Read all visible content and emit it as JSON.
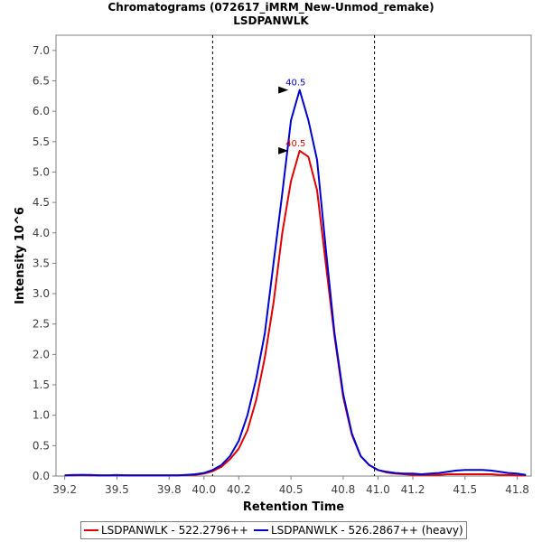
{
  "chart_data": {
    "type": "line",
    "title": "Chromatograms (072617_iMRM_New-Unmod_remake)",
    "subtitle": "LSDPANWLK",
    "xlabel": "Retention Time",
    "ylabel": "Intensity 10^6",
    "xlim": [
      39.15,
      41.88
    ],
    "ylim": [
      0,
      7.25
    ],
    "x_ticks": [
      39.2,
      39.5,
      39.8,
      40.0,
      40.2,
      40.5,
      40.8,
      41.0,
      41.2,
      41.5,
      41.8
    ],
    "x_tick_labels": [
      "39.2",
      "39.5",
      "39.8",
      "40.0",
      "40.2",
      "40.5",
      "40.8",
      "41.0",
      "41.2",
      "41.5",
      "41.8"
    ],
    "y_ticks": [
      0,
      0.5,
      1,
      1.5,
      2,
      2.5,
      3,
      3.5,
      4,
      4.5,
      5,
      5.5,
      6,
      6.5,
      7
    ],
    "y_tick_labels": [
      "0.0",
      "0.5",
      "1.0",
      "1.5",
      "2.0",
      "2.5",
      "3.0",
      "3.5",
      "4.0",
      "4.5",
      "5.0",
      "5.5",
      "6.0",
      "6.5",
      "7.0"
    ],
    "vlines": [
      40.05,
      40.98
    ],
    "series": [
      {
        "name": "LSDPANWLK - 522.2796++",
        "color": "#e00000",
        "peak_label": "40.5",
        "peak": [
          40.5,
          5.35
        ],
        "x": [
          39.2,
          39.25,
          39.3,
          39.35,
          39.4,
          39.45,
          39.5,
          39.55,
          39.6,
          39.65,
          39.7,
          39.75,
          39.8,
          39.85,
          39.9,
          39.95,
          40.0,
          40.05,
          40.1,
          40.15,
          40.2,
          40.25,
          40.3,
          40.35,
          40.4,
          40.45,
          40.5,
          40.55,
          40.6,
          40.65,
          40.7,
          40.75,
          40.8,
          40.85,
          40.9,
          40.95,
          41.0,
          41.05,
          41.1,
          41.15,
          41.2,
          41.25,
          41.3,
          41.35,
          41.4,
          41.45,
          41.5,
          41.55,
          41.6,
          41.65,
          41.7,
          41.75,
          41.8,
          41.85
        ],
        "y": [
          0.01,
          0.01,
          0.02,
          0.01,
          0.01,
          0.01,
          0.02,
          0.01,
          0.01,
          0.01,
          0.01,
          0.01,
          0.01,
          0.01,
          0.02,
          0.02,
          0.04,
          0.08,
          0.15,
          0.28,
          0.45,
          0.75,
          1.25,
          1.95,
          2.85,
          4.0,
          4.85,
          5.35,
          5.25,
          4.7,
          3.5,
          2.3,
          1.3,
          0.68,
          0.33,
          0.18,
          0.1,
          0.06,
          0.04,
          0.03,
          0.02,
          0.02,
          0.02,
          0.02,
          0.03,
          0.03,
          0.03,
          0.03,
          0.03,
          0.03,
          0.02,
          0.02,
          0.01,
          0.01
        ]
      },
      {
        "name": "LSDPANWLK - 526.2867++ (heavy)",
        "color": "#0000d0",
        "peak_label": "40.5",
        "peak": [
          40.5,
          6.35
        ],
        "x": [
          39.2,
          39.25,
          39.3,
          39.35,
          39.4,
          39.45,
          39.5,
          39.55,
          39.6,
          39.65,
          39.7,
          39.75,
          39.8,
          39.85,
          39.9,
          39.95,
          40.0,
          40.05,
          40.1,
          40.15,
          40.2,
          40.25,
          40.3,
          40.35,
          40.4,
          40.45,
          40.5,
          40.55,
          40.6,
          40.65,
          40.7,
          40.75,
          40.8,
          40.85,
          40.9,
          40.95,
          41.0,
          41.05,
          41.1,
          41.15,
          41.2,
          41.25,
          41.3,
          41.35,
          41.4,
          41.45,
          41.5,
          41.55,
          41.6,
          41.65,
          41.7,
          41.75,
          41.8,
          41.85
        ],
        "y": [
          0.01,
          0.02,
          0.02,
          0.02,
          0.01,
          0.01,
          0.01,
          0.01,
          0.01,
          0.01,
          0.01,
          0.01,
          0.01,
          0.01,
          0.02,
          0.03,
          0.05,
          0.1,
          0.18,
          0.33,
          0.58,
          1.0,
          1.6,
          2.35,
          3.5,
          4.65,
          5.85,
          6.35,
          5.85,
          5.2,
          3.75,
          2.35,
          1.35,
          0.7,
          0.33,
          0.18,
          0.1,
          0.07,
          0.05,
          0.04,
          0.04,
          0.03,
          0.04,
          0.05,
          0.07,
          0.09,
          0.1,
          0.1,
          0.1,
          0.09,
          0.07,
          0.05,
          0.04,
          0.02
        ]
      }
    ]
  }
}
